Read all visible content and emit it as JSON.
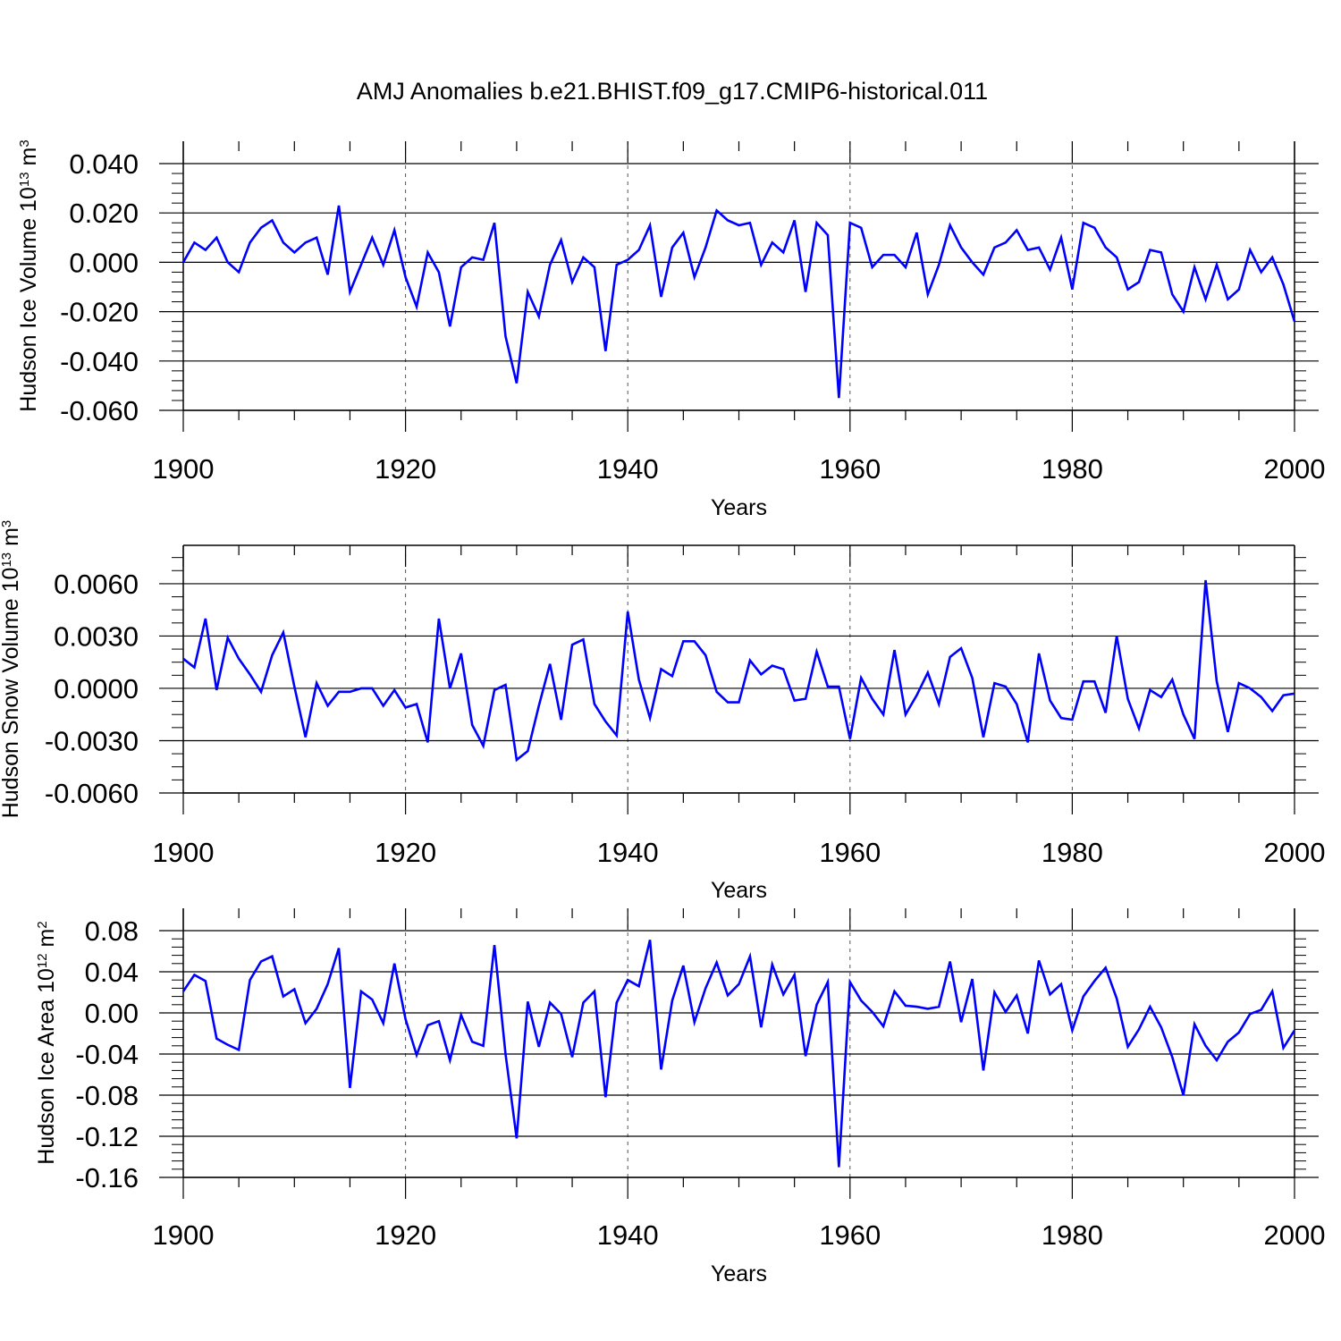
{
  "title": "AMJ Anomalies b.e21.BHIST.f09_g17.CMIP6-historical.011",
  "line_color": "#0000ff",
  "chart_data": [
    {
      "type": "line",
      "id": "ice-volume",
      "ylabel": "Hudson Ice Volume 10",
      "ylabel_sup": "13",
      "ylabel_unit": " m",
      "ylabel_unit_sup": "3",
      "xlabel": "Years",
      "xlim": [
        1900,
        2000
      ],
      "ylim": [
        -0.06,
        0.04
      ],
      "x_ticks": [
        1900,
        1920,
        1940,
        1960,
        1980,
        2000
      ],
      "x_tick_labels": [
        "1900",
        "1920",
        "1940",
        "1960",
        "1980",
        "2000"
      ],
      "y_ticks": [
        -0.06,
        -0.04,
        -0.02,
        0.0,
        0.02,
        0.04
      ],
      "y_tick_labels": [
        "-0.060",
        "-0.040",
        "-0.020",
        "0.000",
        "0.020",
        "0.040"
      ],
      "x_start": 1900,
      "x_step": 1,
      "values": [
        0.0,
        0.008,
        0.005,
        0.01,
        0.0,
        -0.004,
        0.008,
        0.014,
        0.017,
        0.008,
        0.004,
        0.008,
        0.01,
        -0.005,
        0.023,
        -0.012,
        -0.001,
        0.01,
        -0.001,
        0.013,
        -0.006,
        -0.018,
        0.004,
        -0.004,
        -0.026,
        -0.002,
        0.002,
        0.001,
        0.016,
        -0.03,
        -0.049,
        -0.012,
        -0.022,
        -0.001,
        0.009,
        -0.008,
        0.002,
        -0.002,
        -0.036,
        -0.001,
        0.001,
        0.005,
        0.015,
        -0.014,
        0.006,
        0.012,
        -0.006,
        0.006,
        0.021,
        0.017,
        0.015,
        0.016,
        -0.001,
        0.008,
        0.004,
        0.017,
        -0.012,
        0.016,
        0.011,
        -0.055,
        0.016,
        0.014,
        -0.002,
        0.003,
        0.003,
        -0.002,
        0.012,
        -0.013,
        -0.001,
        0.015,
        0.006,
        0.0,
        -0.005,
        0.006,
        0.008,
        0.013,
        0.005,
        0.006,
        -0.003,
        0.01,
        -0.011,
        0.016,
        0.014,
        0.006,
        0.002,
        -0.011,
        -0.008,
        0.005,
        0.004,
        -0.013,
        -0.02,
        -0.002,
        -0.015,
        -0.001,
        -0.015,
        -0.011,
        0.005,
        -0.004,
        0.002,
        -0.009,
        -0.024
      ]
    },
    {
      "type": "line",
      "id": "snow-volume",
      "ylabel": "Hudson Snow Volume 10",
      "ylabel_sup": "13",
      "ylabel_unit": " m",
      "ylabel_unit_sup": "3",
      "xlabel": "Years",
      "xlim": [
        1900,
        2000
      ],
      "ylim": [
        -0.006,
        0.0082
      ],
      "x_ticks": [
        1900,
        1920,
        1940,
        1960,
        1980,
        2000
      ],
      "x_tick_labels": [
        "1900",
        "1920",
        "1940",
        "1960",
        "1980",
        "2000"
      ],
      "y_ticks": [
        -0.006,
        -0.003,
        0.0,
        0.003,
        0.006
      ],
      "y_tick_labels": [
        "-0.0060",
        "-0.0030",
        "0.0000",
        "0.0030",
        "0.0060"
      ],
      "x_start": 1900,
      "x_step": 1,
      "values": [
        0.0017,
        0.0012,
        0.004,
        -0.0001,
        0.0029,
        0.0017,
        0.0008,
        -0.0002,
        0.0019,
        0.0032,
        0.0001,
        -0.0028,
        0.0003,
        -0.001,
        -0.0002,
        -0.0002,
        0.0,
        0.0,
        -0.001,
        -0.0001,
        -0.0011,
        -0.0009,
        -0.0031,
        0.004,
        0.0,
        0.002,
        -0.0021,
        -0.0033,
        -0.0001,
        0.0002,
        -0.0041,
        -0.0036,
        -0.001,
        0.0014,
        -0.0018,
        0.0025,
        0.0028,
        -0.0009,
        -0.0019,
        -0.0027,
        0.0044,
        0.0005,
        -0.0017,
        0.0011,
        0.0007,
        0.0027,
        0.0027,
        0.0019,
        -0.0002,
        -0.0008,
        -0.0008,
        0.0016,
        0.0008,
        0.0013,
        0.0011,
        -0.0007,
        -0.0006,
        0.0021,
        0.0001,
        0.0001,
        -0.0029,
        0.0006,
        -0.0006,
        -0.0015,
        0.0022,
        -0.0015,
        -0.0004,
        0.0009,
        -0.0009,
        0.0018,
        0.0023,
        0.0006,
        -0.0028,
        0.0003,
        0.0001,
        -0.0009,
        -0.0031,
        0.002,
        -0.0007,
        -0.0017,
        -0.0018,
        0.0004,
        0.0004,
        -0.0014,
        0.003,
        -0.0006,
        -0.0023,
        -0.0001,
        -0.0005,
        0.0005,
        -0.0015,
        -0.0029,
        0.0062,
        0.0004,
        -0.0025,
        0.0003,
        0.0,
        -0.0005,
        -0.0013,
        -0.0004,
        -0.0003
      ]
    },
    {
      "type": "line",
      "id": "ice-area",
      "ylabel": "Hudson Ice Area 10",
      "ylabel_sup": "12",
      "ylabel_unit": " m",
      "ylabel_unit_sup": "2",
      "xlabel": "Years",
      "xlim": [
        1900,
        2000
      ],
      "ylim": [
        -0.16,
        0.08
      ],
      "x_ticks": [
        1900,
        1920,
        1940,
        1960,
        1980,
        2000
      ],
      "x_tick_labels": [
        "1900",
        "1920",
        "1940",
        "1960",
        "1980",
        "2000"
      ],
      "y_ticks": [
        -0.16,
        -0.12,
        -0.08,
        -0.04,
        0.0,
        0.04,
        0.08
      ],
      "y_tick_labels": [
        "-0.16",
        "-0.12",
        "-0.08",
        "-0.04",
        "0.00",
        "0.04",
        "0.08"
      ],
      "x_start": 1900,
      "x_step": 1,
      "values": [
        0.021,
        0.037,
        0.031,
        -0.025,
        -0.031,
        -0.036,
        0.032,
        0.05,
        0.055,
        0.016,
        0.023,
        -0.01,
        0.004,
        0.028,
        0.063,
        -0.073,
        0.021,
        0.013,
        -0.01,
        0.048,
        -0.006,
        -0.041,
        -0.012,
        -0.008,
        -0.046,
        -0.002,
        -0.028,
        -0.032,
        0.066,
        -0.04,
        -0.122,
        0.011,
        -0.033,
        0.01,
        -0.001,
        -0.043,
        0.01,
        0.021,
        -0.082,
        0.01,
        0.032,
        0.026,
        0.071,
        -0.055,
        0.012,
        0.046,
        -0.009,
        0.024,
        0.049,
        0.017,
        0.028,
        0.055,
        -0.014,
        0.047,
        0.018,
        0.037,
        -0.042,
        0.008,
        0.03,
        -0.15,
        0.03,
        0.012,
        0.001,
        -0.013,
        0.021,
        0.007,
        0.006,
        0.004,
        0.006,
        0.05,
        -0.009,
        0.033,
        -0.056,
        0.02,
        0.001,
        0.017,
        -0.02,
        0.051,
        0.018,
        0.028,
        -0.017,
        0.016,
        0.031,
        0.044,
        0.014,
        -0.033,
        -0.016,
        0.006,
        -0.014,
        -0.043,
        -0.08,
        -0.011,
        -0.032,
        -0.046,
        -0.028,
        -0.019,
        -0.001,
        0.003,
        0.021,
        -0.034,
        -0.017
      ]
    }
  ]
}
